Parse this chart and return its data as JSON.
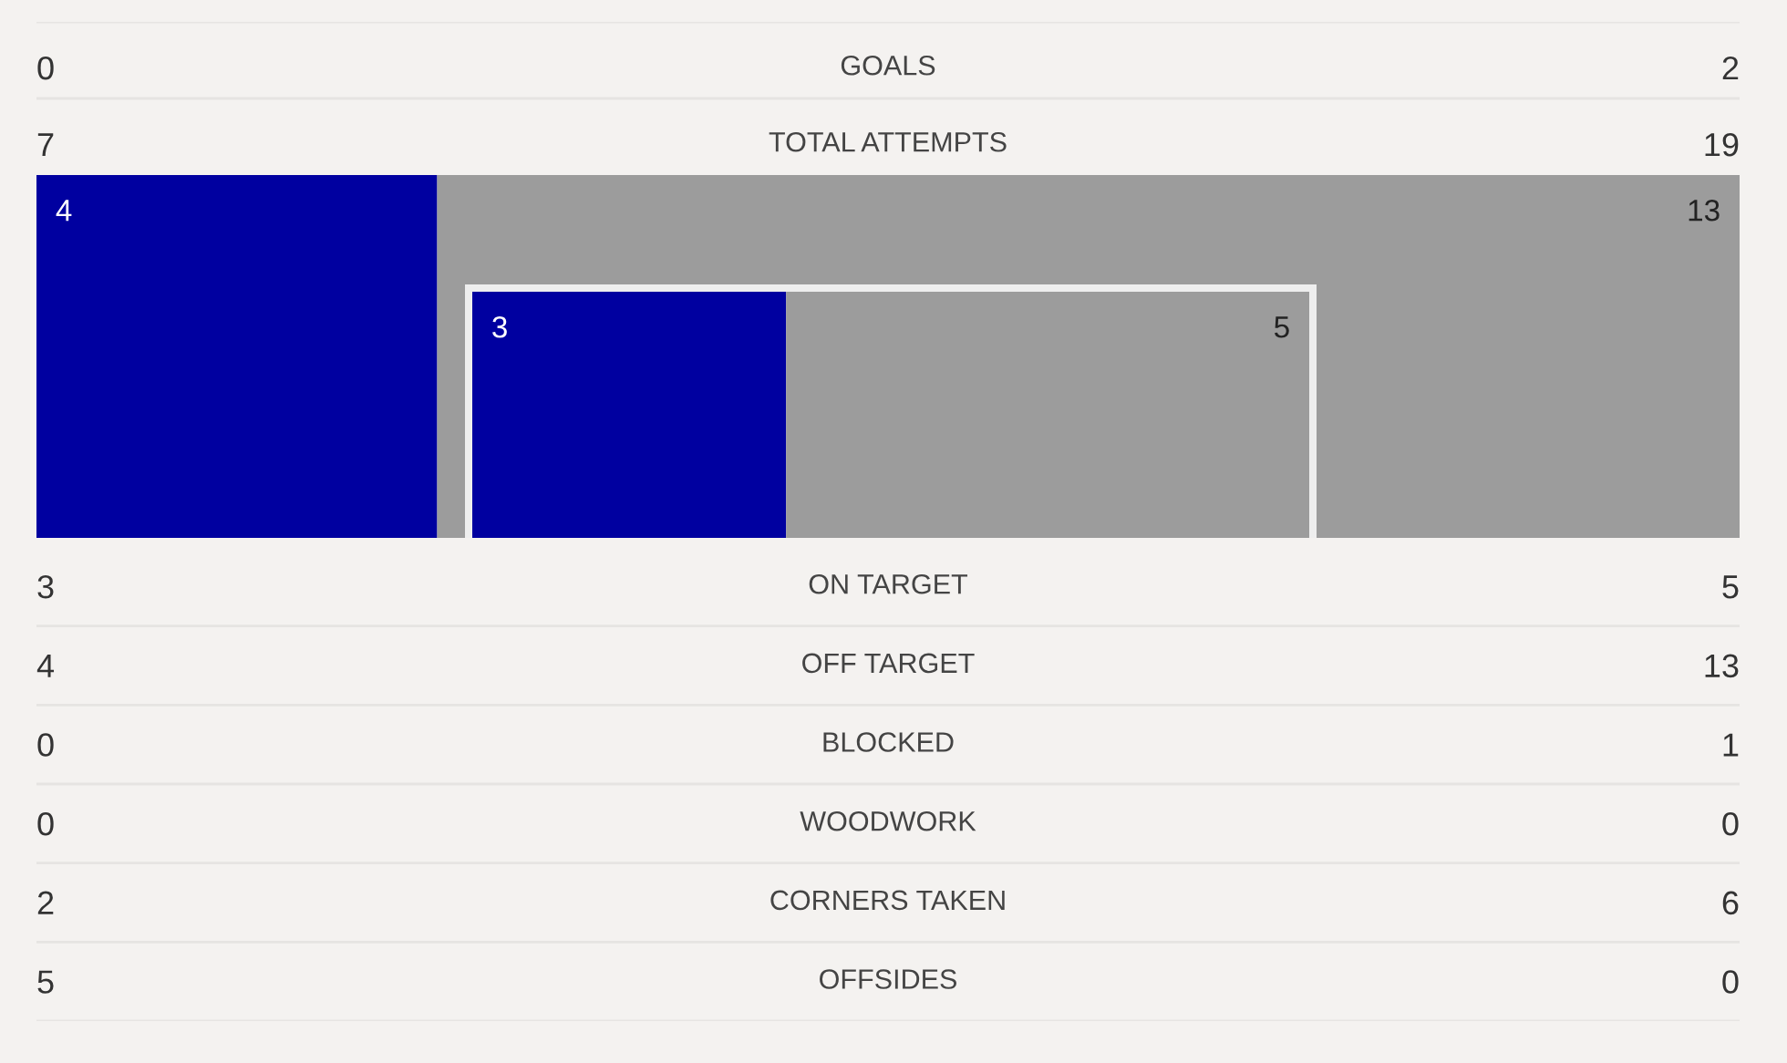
{
  "chart_data": [
    {
      "type": "other",
      "categories": [
        "GOALS",
        "TOTAL ATTEMPTS"
      ],
      "series": [
        {
          "values": [
            0,
            7
          ]
        },
        {
          "values": [
            2,
            19
          ]
        }
      ],
      "data_labels": true
    },
    {
      "type": "bar",
      "orientation": "horizontal",
      "stacked": true,
      "categories": [
        null
      ],
      "series": [
        {
          "color": "#0000a0",
          "values": [
            4
          ]
        },
        {
          "color": "#9c9c9c",
          "values": [
            13
          ]
        }
      ],
      "data_labels": true,
      "tick_labels": false
    },
    {
      "type": "bar",
      "orientation": "horizontal",
      "stacked": true,
      "categories": [
        null
      ],
      "series": [
        {
          "color": "#0000a0",
          "values": [
            3
          ]
        },
        {
          "color": "#9c9c9c",
          "values": [
            5
          ]
        }
      ],
      "data_labels": true,
      "tick_labels": false
    },
    {
      "type": "other",
      "categories": [
        "ON TARGET",
        "OFF TARGET",
        "BLOCKED",
        "WOODWORK",
        "CORNERS TAKEN",
        "OFFSIDES"
      ],
      "series": [
        {
          "values": [
            3,
            4,
            0,
            0,
            2,
            5
          ]
        },
        {
          "values": [
            5,
            13,
            1,
            0,
            6,
            0
          ]
        }
      ],
      "data_labels": true
    }
  ]
}
